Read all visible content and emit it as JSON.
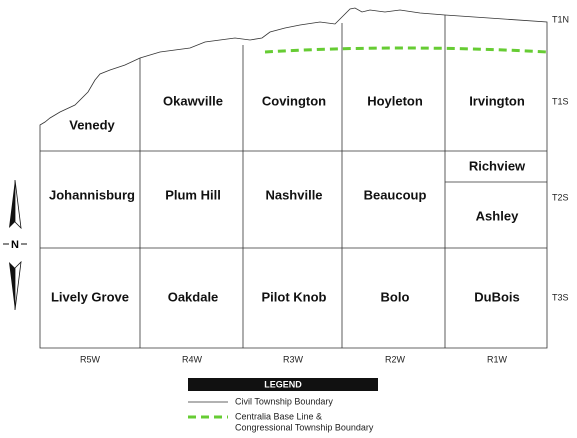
{
  "map": {
    "townships": [
      "Venedy",
      "Okawville",
      "Covington",
      "Hoyleton",
      "Irvington",
      "Johannisburg",
      "Plum Hill",
      "Nashville",
      "Beaucoup",
      "Richview",
      "Ashley",
      "Lively Grove",
      "Oakdale",
      "Pilot Knob",
      "Bolo",
      "DuBois"
    ],
    "tiers": [
      "T1N",
      "T1S",
      "T2S",
      "T3S"
    ],
    "ranges": [
      "R5W",
      "R4W",
      "R3W",
      "R2W",
      "R1W"
    ],
    "north": "N"
  },
  "legend": {
    "title": "LEGEND",
    "items": [
      {
        "lines": [
          "Civil Township Boundary"
        ]
      },
      {
        "lines": [
          "Centralia Base Line &",
          "Congressional Township Boundary"
        ]
      }
    ]
  }
}
